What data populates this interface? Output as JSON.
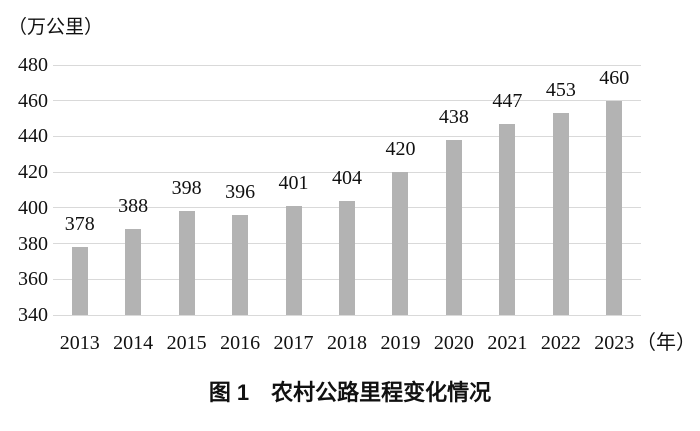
{
  "chart_data": {
    "type": "bar",
    "title": "图 1　农村公路里程变化情况",
    "unit_label": "（万公里）",
    "x_unit_label": "（年）",
    "categories": [
      "2013",
      "2014",
      "2015",
      "2016",
      "2017",
      "2018",
      "2019",
      "2020",
      "2021",
      "2022",
      "2023"
    ],
    "values": [
      378,
      388,
      398,
      396,
      401,
      404,
      420,
      438,
      447,
      453,
      460
    ],
    "yticks": [
      480,
      460,
      440,
      420,
      400,
      380,
      360,
      340
    ],
    "ylim": [
      340,
      480
    ],
    "grid": "horizontal",
    "legend": "none",
    "bar_color": "#b3b3b3",
    "gridline_color": "#d9d9d9",
    "text_color": "#111111",
    "background_color": "#ffffff"
  }
}
